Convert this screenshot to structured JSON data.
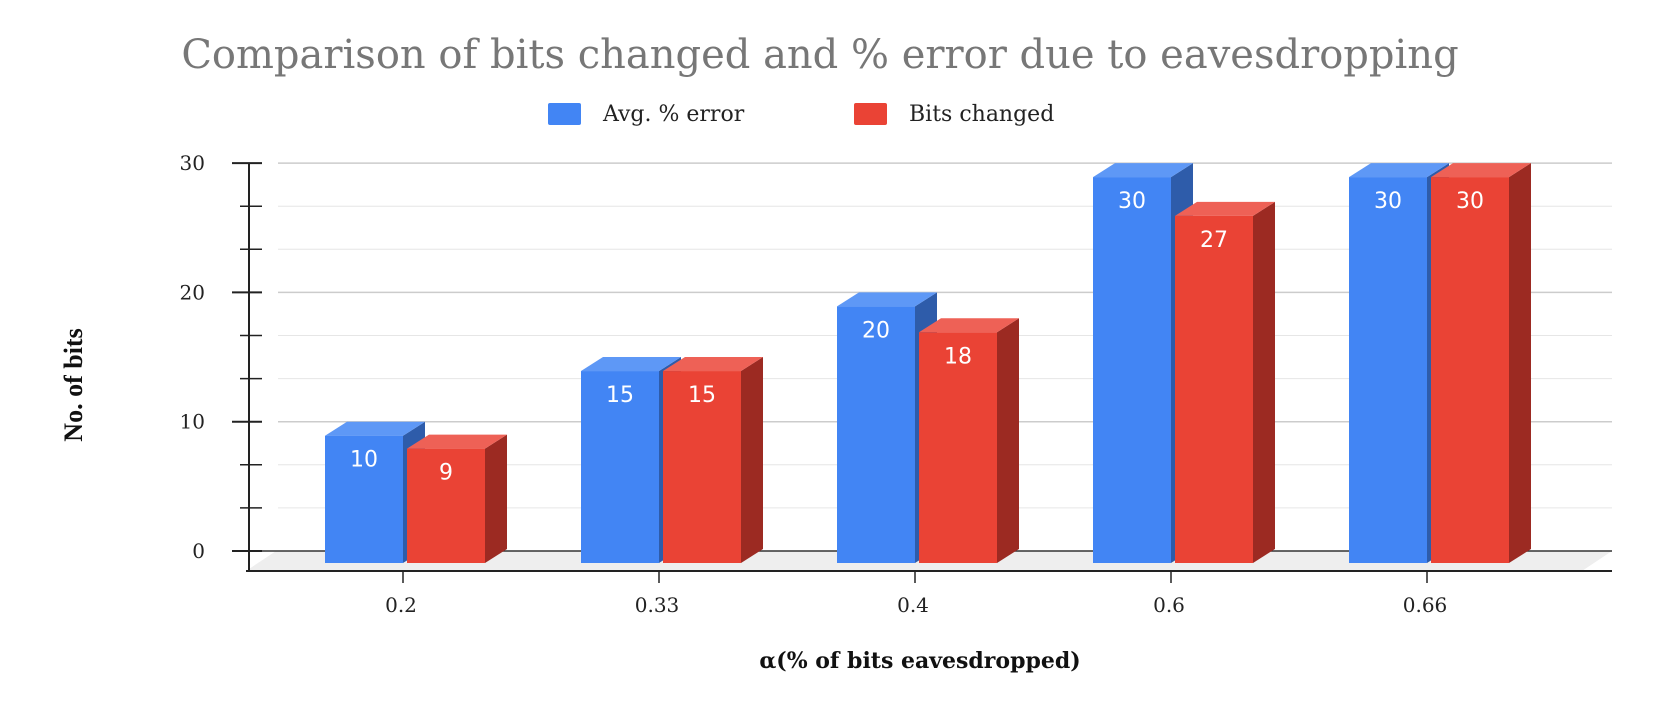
{
  "chart_data": {
    "type": "bar",
    "title": "Comparison of bits changed and % error due to eavesdropping",
    "xlabel": "α(% of bits eavesdropped)",
    "ylabel": "No. of bits",
    "categories": [
      "0.2",
      "0.33",
      "0.4",
      "0.6",
      "0.66"
    ],
    "series": [
      {
        "name": "Avg. % error",
        "values": [
          10,
          15,
          20,
          30,
          30
        ],
        "color": "#4285F4",
        "side_color": "#2E5CAA",
        "top_color": "#5E98F6"
      },
      {
        "name": "Bits changed",
        "values": [
          9,
          15,
          18,
          27,
          30
        ],
        "color": "#EA4335",
        "side_color": "#9C2A22",
        "top_color": "#EE6156"
      }
    ],
    "ylim": [
      0,
      30
    ],
    "yticks": [
      "0",
      "10",
      "20",
      "30"
    ],
    "grid": true,
    "legend_position": "top-center",
    "style": "3d-bar"
  }
}
